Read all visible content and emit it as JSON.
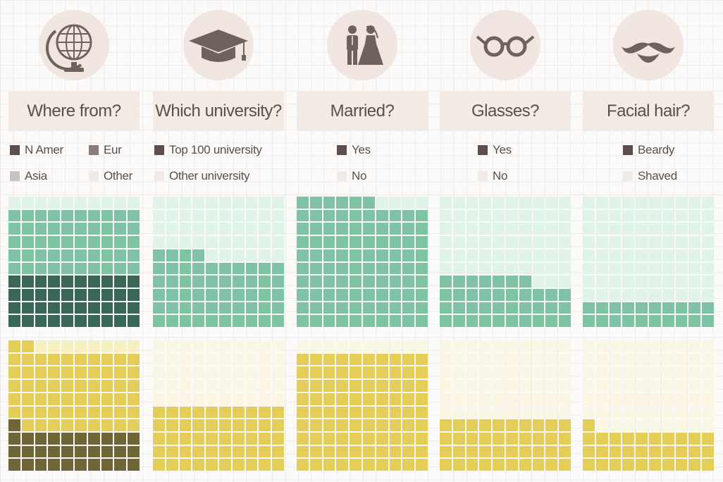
{
  "colors": {
    "green_dark": "#3a6655",
    "green_mid": "#7fc3a5",
    "green_light": "#dff3e9",
    "yellow_dark": "#706537",
    "yellow_mid": "#e5ce58",
    "yellow_light": "#f6efc0",
    "yellow_pale": "#fbf6e3",
    "swatch_dark": "#5b4e4b",
    "swatch_mid": "#8a7b77",
    "swatch_light": "#c8c3c1",
    "swatch_pale": "#f3e9e5"
  },
  "columns": [
    {
      "title": "Where from?",
      "icon": "globe-icon",
      "legend": [
        {
          "label": "N Amer",
          "swatch": "dark"
        },
        {
          "label": "Eur",
          "swatch": "mid"
        },
        {
          "label": "Asia",
          "swatch": "light"
        },
        {
          "label": "Other",
          "swatch": "pale"
        }
      ]
    },
    {
      "title": "Which university?",
      "icon": "graduation-cap-icon",
      "legend": [
        {
          "label": "Top 100 university",
          "swatch": "dark"
        },
        {
          "label": "Other university",
          "swatch": "pale"
        }
      ]
    },
    {
      "title": "Married?",
      "icon": "bride-groom-icon",
      "legend": [
        {
          "label": "Yes",
          "swatch": "dark"
        },
        {
          "label": "No",
          "swatch": "pale"
        }
      ]
    },
    {
      "title": "Glasses?",
      "icon": "glasses-icon",
      "legend": [
        {
          "label": "Yes",
          "swatch": "dark"
        },
        {
          "label": "No",
          "swatch": "pale"
        }
      ]
    },
    {
      "title": "Facial hair?",
      "icon": "moustache-icon",
      "legend": [
        {
          "label": "Beardy",
          "swatch": "dark"
        },
        {
          "label": "Shaved",
          "swatch": "pale"
        }
      ]
    }
  ],
  "chart_data": {
    "type": "waffle",
    "grid": [
      10,
      10
    ],
    "fill_order": "bottom-left, row by row upward",
    "charts": [
      {
        "column": "Where from?",
        "row": "green",
        "segments": [
          {
            "label": "N Amer",
            "count": 40,
            "shade": "dark"
          },
          {
            "label": "Eur",
            "count": 50,
            "shade": "mid"
          },
          {
            "label": "Asia",
            "count": 10,
            "shade": "light"
          }
        ]
      },
      {
        "column": "Which university?",
        "row": "green",
        "segments": [
          {
            "label": "Top 100 university",
            "count": 54,
            "shade": "mid"
          },
          {
            "label": "Other university",
            "count": 46,
            "shade": "light"
          }
        ]
      },
      {
        "column": "Married?",
        "row": "green",
        "segments": [
          {
            "label": "Yes",
            "count": 96,
            "shade": "mid"
          },
          {
            "label": "No",
            "count": 4,
            "shade": "light"
          }
        ]
      },
      {
        "column": "Glasses?",
        "row": "green",
        "segments": [
          {
            "label": "Yes",
            "count": 37,
            "shade": "mid"
          },
          {
            "label": "No",
            "count": 63,
            "shade": "light"
          }
        ]
      },
      {
        "column": "Facial hair?",
        "row": "green",
        "segments": [
          {
            "label": "Beardy",
            "count": 20,
            "shade": "mid"
          },
          {
            "label": "Shaved",
            "count": 80,
            "shade": "light"
          }
        ]
      },
      {
        "column": "Where from?",
        "row": "yellow",
        "segments": [
          {
            "label": "N Amer",
            "count": 31,
            "shade": "dark"
          },
          {
            "label": "Eur",
            "count": 61,
            "shade": "mid"
          },
          {
            "label": "Asia",
            "count": 8,
            "shade": "light"
          }
        ]
      },
      {
        "column": "Which university?",
        "row": "yellow",
        "segments": [
          {
            "label": "Top 100 university",
            "count": 50,
            "shade": "mid"
          },
          {
            "label": "Other university",
            "count": 50,
            "shade": "pale"
          }
        ]
      },
      {
        "column": "Married?",
        "row": "yellow",
        "segments": [
          {
            "label": "Yes",
            "count": 90,
            "shade": "mid"
          },
          {
            "label": "No",
            "count": 10,
            "shade": "pale"
          }
        ]
      },
      {
        "column": "Glasses?",
        "row": "yellow",
        "segments": [
          {
            "label": "Yes",
            "count": 40,
            "shade": "mid"
          },
          {
            "label": "No",
            "count": 60,
            "shade": "pale"
          }
        ]
      },
      {
        "column": "Facial hair?",
        "row": "yellow",
        "segments": [
          {
            "label": "Beardy",
            "count": 31,
            "shade": "mid"
          },
          {
            "label": "Shaved",
            "count": 69,
            "shade": "pale"
          }
        ]
      }
    ]
  }
}
